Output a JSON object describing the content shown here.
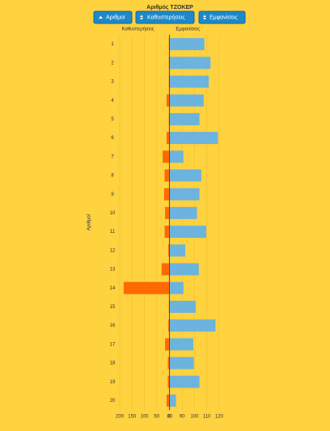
{
  "chart_data": {
    "type": "butterfly-bar",
    "title": "Αριθμός ΤΖΟΚΕΡ",
    "buttons": [
      "Αριθμοί",
      "Καθυστερήσεις",
      "Εμφανίσεις"
    ],
    "y_label": "Αριθμοί",
    "categories": [
      "1",
      "2",
      "3",
      "4",
      "5",
      "6",
      "7",
      "8",
      "9",
      "10",
      "11",
      "12",
      "13",
      "14",
      "15",
      "16",
      "17",
      "18",
      "19",
      "20"
    ],
    "series": [
      {
        "name": "Καθυστερήσεις",
        "color": "#ff6a00",
        "side": "left",
        "values": [
          1,
          1,
          1,
          10,
          1,
          10,
          26,
          18,
          20,
          16,
          18,
          3,
          30,
          184,
          1,
          3,
          16,
          5,
          5,
          10
        ]
      },
      {
        "name": "Εμφανίσεις",
        "color": "#6cb4dd",
        "side": "right",
        "values": [
          108,
          113,
          111.5,
          107.5,
          104,
          119,
          91,
          105.5,
          104,
          102,
          109.5,
          92.5,
          103.5,
          91,
          101,
          117,
          99,
          99.5,
          104,
          85
        ]
      }
    ],
    "left_xlim": [
      0,
      200
    ],
    "left_xticks": [
      200,
      150,
      100,
      50,
      0
    ],
    "xlim": [
      80,
      125
    ],
    "xticks": [
      80,
      90,
      100,
      110,
      120
    ],
    "grid": true
  }
}
